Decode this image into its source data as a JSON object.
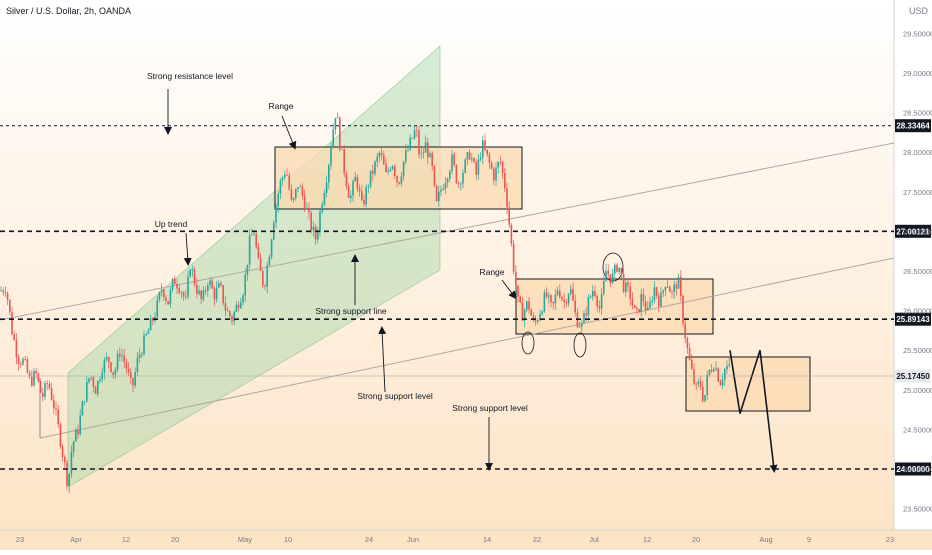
{
  "header": {
    "title": "Silver / U.S. Dollar, 2h, OANDA",
    "currency": "USD"
  },
  "colors": {
    "bg_top": "#ffffff",
    "bg_bottom": "#fde3c4",
    "candle_up": "#26a69a",
    "candle_down": "#ef5350",
    "channel_fill": "#a5d6a7",
    "range_fill": "#fbd9b0",
    "axis_text": "#787b86",
    "label_bg": "#131722"
  },
  "chart_data": {
    "type": "candlestick",
    "symbol": "Silver / U.S. Dollar, 2h, OANDA",
    "x_axis": {
      "ticks": [
        "23",
        "Apr",
        "12",
        "20",
        "May",
        "10",
        "24",
        "Jun",
        "14",
        "22",
        "Jul",
        "12",
        "20",
        "Aug",
        "9",
        "23"
      ]
    },
    "y_axis": {
      "ticks": [
        23.5,
        24.0,
        24.5,
        25.0,
        25.5,
        26.0,
        26.5,
        27.0,
        27.5,
        28.0,
        28.5,
        29.0,
        29.5
      ],
      "tick_labels": [
        "23.50000",
        "24.00000",
        "24.50000",
        "25.00000",
        "25.50000",
        "26.00000",
        "26.50000",
        "27.00000",
        "27.50000",
        "28.00000",
        "28.50000",
        "29.00000",
        "29.50000"
      ],
      "range": [
        23.0,
        30.0
      ]
    },
    "price_levels": [
      {
        "value": 28.33464,
        "label": "28.33464",
        "style": "dotted"
      },
      {
        "value": 27.00121,
        "label": "27.00121",
        "style": "dashed"
      },
      {
        "value": 25.89143,
        "label": "25.89143",
        "style": "dashed"
      },
      {
        "value": 25.1745,
        "label": "25.17450",
        "style": "current"
      },
      {
        "value": 24.0,
        "label": "24.00000",
        "style": "dashed"
      }
    ],
    "price_path": [
      [
        0,
        26.25
      ],
      [
        6,
        26.3
      ],
      [
        12,
        25.75
      ],
      [
        18,
        25.4
      ],
      [
        24,
        25.35
      ],
      [
        30,
        25.1
      ],
      [
        36,
        25.2
      ],
      [
        42,
        24.9
      ],
      [
        48,
        25.1
      ],
      [
        54,
        24.8
      ],
      [
        60,
        24.4
      ],
      [
        64,
        24.1
      ],
      [
        68,
        23.8
      ],
      [
        72,
        24.3
      ],
      [
        78,
        24.5
      ],
      [
        84,
        24.9
      ],
      [
        90,
        25.2
      ],
      [
        96,
        25.0
      ],
      [
        102,
        25.3
      ],
      [
        108,
        25.4
      ],
      [
        114,
        25.2
      ],
      [
        120,
        25.5
      ],
      [
        126,
        25.3
      ],
      [
        132,
        25.0
      ],
      [
        138,
        25.4
      ],
      [
        144,
        25.6
      ],
      [
        150,
        25.8
      ],
      [
        156,
        26.0
      ],
      [
        162,
        26.3
      ],
      [
        168,
        26.1
      ],
      [
        174,
        26.4
      ],
      [
        180,
        26.3
      ],
      [
        186,
        26.1
      ],
      [
        190,
        26.6
      ],
      [
        196,
        26.3
      ],
      [
        202,
        26.1
      ],
      [
        208,
        26.4
      ],
      [
        214,
        26.2
      ],
      [
        220,
        26.3
      ],
      [
        226,
        26.0
      ],
      [
        232,
        25.9
      ],
      [
        238,
        26.1
      ],
      [
        244,
        26.3
      ],
      [
        250,
        26.9
      ],
      [
        254,
        27.0
      ],
      [
        258,
        26.6
      ],
      [
        264,
        26.3
      ],
      [
        270,
        26.8
      ],
      [
        274,
        27.2
      ],
      [
        280,
        27.6
      ],
      [
        286,
        27.8
      ],
      [
        292,
        27.3
      ],
      [
        298,
        27.6
      ],
      [
        304,
        27.4
      ],
      [
        310,
        27.1
      ],
      [
        316,
        26.9
      ],
      [
        322,
        27.4
      ],
      [
        328,
        27.8
      ],
      [
        332,
        28.2
      ],
      [
        336,
        28.55
      ],
      [
        340,
        28.1
      ],
      [
        344,
        27.8
      ],
      [
        350,
        27.4
      ],
      [
        356,
        27.7
      ],
      [
        362,
        27.3
      ],
      [
        368,
        27.6
      ],
      [
        374,
        27.8
      ],
      [
        380,
        28.0
      ],
      [
        386,
        27.7
      ],
      [
        392,
        27.9
      ],
      [
        398,
        27.6
      ],
      [
        404,
        27.9
      ],
      [
        410,
        28.1
      ],
      [
        416,
        28.3
      ],
      [
        420,
        27.9
      ],
      [
        426,
        28.1
      ],
      [
        432,
        27.8
      ],
      [
        436,
        27.3
      ],
      [
        440,
        27.5
      ],
      [
        446,
        27.7
      ],
      [
        452,
        27.9
      ],
      [
        458,
        27.6
      ],
      [
        464,
        27.8
      ],
      [
        470,
        28.0
      ],
      [
        476,
        27.7
      ],
      [
        482,
        28.1
      ],
      [
        488,
        27.9
      ],
      [
        494,
        27.7
      ],
      [
        500,
        27.9
      ],
      [
        506,
        27.5
      ],
      [
        510,
        27.0
      ],
      [
        514,
        26.5
      ],
      [
        518,
        26.1
      ],
      [
        522,
        25.95
      ],
      [
        528,
        26.1
      ],
      [
        534,
        25.8
      ],
      [
        540,
        26.0
      ],
      [
        546,
        26.2
      ],
      [
        552,
        26.0
      ],
      [
        558,
        26.3
      ],
      [
        564,
        26.1
      ],
      [
        570,
        26.3
      ],
      [
        576,
        25.9
      ],
      [
        582,
        25.8
      ],
      [
        588,
        26.1
      ],
      [
        594,
        26.3
      ],
      [
        600,
        26.0
      ],
      [
        606,
        26.5
      ],
      [
        612,
        26.4
      ],
      [
        618,
        26.6
      ],
      [
        624,
        26.3
      ],
      [
        630,
        26.2
      ],
      [
        636,
        25.9
      ],
      [
        642,
        26.2
      ],
      [
        648,
        25.95
      ],
      [
        654,
        26.3
      ],
      [
        660,
        26.1
      ],
      [
        666,
        26.4
      ],
      [
        672,
        26.2
      ],
      [
        678,
        26.4
      ],
      [
        684,
        25.8
      ],
      [
        688,
        25.45
      ],
      [
        692,
        25.2
      ],
      [
        696,
        25.0
      ],
      [
        700,
        25.1
      ],
      [
        704,
        24.85
      ],
      [
        708,
        25.2
      ],
      [
        714,
        25.35
      ],
      [
        720,
        25.1
      ],
      [
        726,
        25.3
      ],
      [
        730,
        25.25
      ]
    ],
    "projection": [
      [
        730,
        25.5
      ],
      [
        740,
        24.7
      ],
      [
        760,
        25.5
      ],
      [
        774,
        24.0
      ]
    ],
    "annotations": [
      {
        "text": "Strong resistance level"
      },
      {
        "text": "Range"
      },
      {
        "text": "Up trend"
      },
      {
        "text": "Strong support line"
      },
      {
        "text": "Range"
      },
      {
        "text": "Strong support level"
      },
      {
        "text": "Strong support level"
      }
    ]
  }
}
